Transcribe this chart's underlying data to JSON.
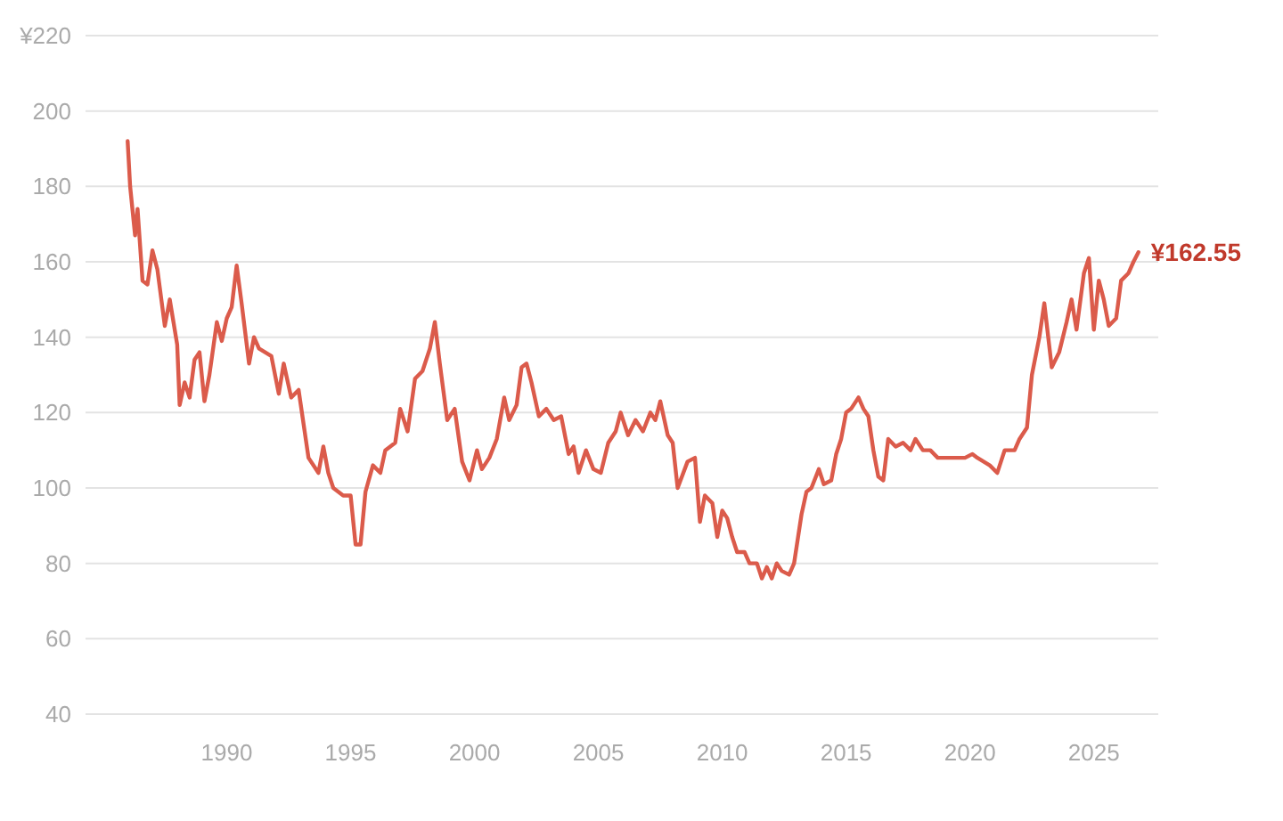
{
  "chart_data": {
    "type": "line",
    "x": [
      1986.0,
      1986.1,
      1986.3,
      1986.4,
      1986.6,
      1986.8,
      1987.0,
      1987.2,
      1987.5,
      1987.7,
      1988.0,
      1988.1,
      1988.3,
      1988.5,
      1988.7,
      1988.9,
      1989.1,
      1989.3,
      1989.6,
      1989.8,
      1990.0,
      1990.2,
      1990.4,
      1990.6,
      1990.9,
      1991.1,
      1991.3,
      1991.8,
      1992.1,
      1992.3,
      1992.6,
      1992.9,
      1993.3,
      1993.7,
      1993.9,
      1994.1,
      1994.3,
      1994.7,
      1995.0,
      1995.2,
      1995.4,
      1995.6,
      1995.9,
      1996.2,
      1996.4,
      1996.8,
      1997.0,
      1997.3,
      1997.6,
      1997.9,
      1998.2,
      1998.4,
      1998.6,
      1998.9,
      1999.2,
      1999.5,
      1999.8,
      2000.1,
      2000.3,
      2000.6,
      2000.9,
      2001.2,
      2001.4,
      2001.7,
      2001.9,
      2002.1,
      2002.3,
      2002.6,
      2002.9,
      2003.2,
      2003.5,
      2003.8,
      2004.0,
      2004.2,
      2004.5,
      2004.8,
      2005.1,
      2005.4,
      2005.7,
      2005.9,
      2006.2,
      2006.5,
      2006.8,
      2007.1,
      2007.3,
      2007.5,
      2007.8,
      2008.0,
      2008.2,
      2008.6,
      2008.9,
      2009.1,
      2009.3,
      2009.6,
      2009.8,
      2010.0,
      2010.2,
      2010.4,
      2010.6,
      2010.9,
      2011.1,
      2011.4,
      2011.6,
      2011.8,
      2012.0,
      2012.2,
      2012.4,
      2012.7,
      2012.9,
      2013.2,
      2013.4,
      2013.6,
      2013.9,
      2014.1,
      2014.4,
      2014.6,
      2014.8,
      2015.0,
      2015.2,
      2015.5,
      2015.7,
      2015.9,
      2016.1,
      2016.3,
      2016.5,
      2016.7,
      2017.0,
      2017.3,
      2017.6,
      2017.8,
      2018.1,
      2018.4,
      2018.7,
      2019.0,
      2019.4,
      2019.8,
      2020.1,
      2020.3,
      2020.8,
      2021.1,
      2021.4,
      2021.6,
      2021.8,
      2022.0,
      2022.3,
      2022.5,
      2022.8,
      2023.0,
      2023.3,
      2023.6,
      2023.9,
      2024.1,
      2024.3,
      2024.6,
      2024.8,
      2025.0,
      2025.2,
      2025.4,
      2025.6,
      2025.9,
      2026.1,
      2026.4,
      2026.6,
      2026.8
    ],
    "series": [
      {
        "color": "#db5b4b",
        "values": [
          192,
          180,
          167,
          174,
          155,
          154,
          163,
          158,
          143,
          150,
          138,
          122,
          128,
          124,
          134,
          136,
          123,
          130,
          144,
          139,
          145,
          148,
          159,
          149,
          133,
          140,
          137,
          135,
          125,
          133,
          124,
          126,
          108,
          104,
          111,
          104,
          100,
          98,
          98,
          85,
          85,
          99,
          106,
          104,
          110,
          112,
          121,
          115,
          129,
          131,
          137,
          144,
          133,
          118,
          121,
          107,
          102,
          110,
          105,
          108,
          113,
          124,
          118,
          122,
          132,
          133,
          128,
          119,
          121,
          118,
          119,
          109,
          111,
          104,
          110,
          105,
          104,
          112,
          115,
          120,
          114,
          118,
          115,
          120,
          118,
          123,
          114,
          112,
          100,
          107,
          108,
          91,
          98,
          96,
          87,
          94,
          92,
          87,
          83,
          83,
          80,
          80,
          76,
          79,
          76,
          80,
          78,
          77,
          80,
          93,
          99,
          100,
          105,
          101,
          102,
          109,
          113,
          120,
          121,
          124,
          121,
          119,
          110,
          103,
          102,
          113,
          111,
          112,
          110,
          113,
          110,
          110,
          108,
          108,
          108,
          108,
          109,
          108,
          106,
          104,
          110,
          110,
          110,
          113,
          116,
          130,
          140,
          149,
          132,
          136,
          144,
          150,
          142,
          157,
          161,
          142,
          155,
          150,
          143,
          145,
          155,
          157,
          160,
          162.55
        ]
      }
    ],
    "xlim": [
      1984.3,
      2027.6
    ],
    "xticks": [
      1990,
      1995,
      2000,
      2005,
      2010,
      2015,
      2020,
      2025
    ],
    "ylim": [
      40,
      220
    ],
    "yticks": [
      40,
      60,
      80,
      100,
      120,
      140,
      160,
      180,
      200,
      {
        "value": 220,
        "label": "¥220"
      }
    ],
    "grid": "y",
    "line_style": "solid",
    "annotations": [
      {
        "text": "¥162.55",
        "x": 2026.8,
        "y": 162.55
      }
    ]
  }
}
